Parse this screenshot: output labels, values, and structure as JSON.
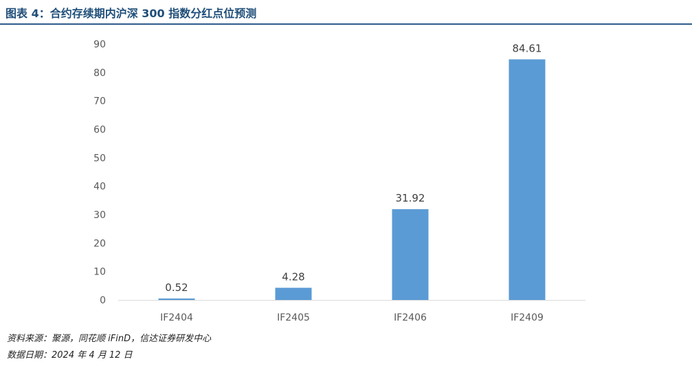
{
  "header": {
    "title": "图表 4：合约存续期内沪深 300 指数分红点位预测"
  },
  "footer": {
    "source": "资料来源：聚源，同花顺 iFinD，信达证券研发中心",
    "date": "数据日期：2024 年 4 月 12 日"
  },
  "chart_data": {
    "type": "bar",
    "categories": [
      "IF2404",
      "IF2405",
      "IF2406",
      "IF2409"
    ],
    "values": [
      0.52,
      4.28,
      31.92,
      84.61
    ],
    "data_labels": [
      "0.52",
      "4.28",
      "31.92",
      "84.61"
    ],
    "ylim": [
      0,
      90
    ],
    "yticks": [
      0,
      10,
      20,
      30,
      40,
      50,
      60,
      70,
      80,
      90
    ],
    "grid": false,
    "bar_color": "#5b9bd5",
    "axis_color": "#d9d9d9",
    "text_color": "#595959"
  }
}
